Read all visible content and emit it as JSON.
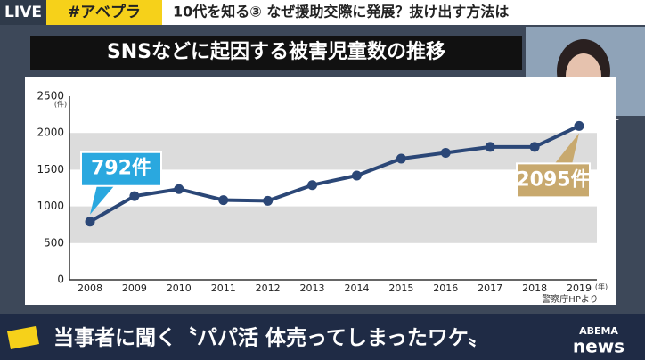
{
  "header": {
    "live": "LIVE",
    "hashtag": "#アベプラ",
    "headline": "10代を知る③ なぜ援助交際に発展？抜け出す方法は"
  },
  "chart_data": {
    "type": "line",
    "title": "SNSなどに起因する被害児童数の推移",
    "y_unit": "(件)",
    "x_unit": "(年)",
    "categories": [
      "2008",
      "2009",
      "2010",
      "2011",
      "2012",
      "2013",
      "2014",
      "2015",
      "2016",
      "2017",
      "2018",
      "2019"
    ],
    "values": [
      792,
      1140,
      1235,
      1085,
      1075,
      1290,
      1420,
      1650,
      1730,
      1810,
      1810,
      2095
    ],
    "value_labels": [
      "792件",
      null,
      null,
      null,
      null,
      null,
      null,
      null,
      null,
      null,
      null,
      "2095件"
    ],
    "color": "#2b4777",
    "ylim": [
      0,
      2500
    ],
    "yticks": [
      0,
      500,
      1000,
      1500,
      2000,
      2500
    ],
    "grid": true,
    "source": "警察庁HPより"
  },
  "caption": "当事者に聞く〝パパ活 体売ってしまったワケ〟",
  "logo": {
    "brand": "ABEMA",
    "name": "news"
  }
}
